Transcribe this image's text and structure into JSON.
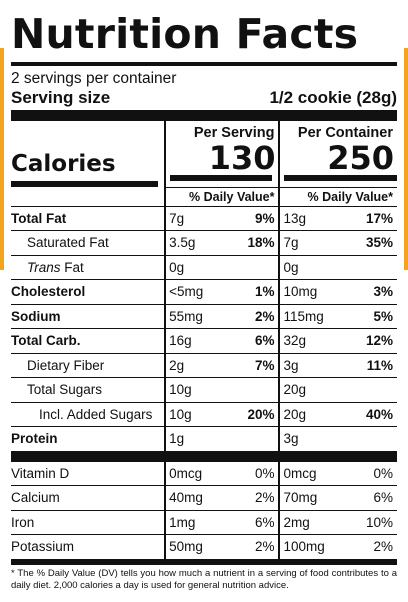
{
  "title": "Nutrition Facts",
  "servings_per_container": "2 servings per container",
  "serving_size_label": "Serving size",
  "serving_size_value": "1/2 cookie (28g)",
  "columns": {
    "per_serving": "Per Serving",
    "per_container": "Per Container",
    "dv_label": "% Daily Value*"
  },
  "calories": {
    "label": "Calories",
    "per_serving": "130",
    "per_container": "250"
  },
  "nutrients": [
    {
      "name": "Total Fat",
      "s_amt": "7g",
      "s_dv": "9%",
      "c_amt": "13g",
      "c_dv": "17%"
    },
    {
      "name": "Saturated Fat",
      "s_amt": "3.5g",
      "s_dv": "18%",
      "c_amt": "7g",
      "c_dv": "35%"
    },
    {
      "name_italic": "Trans",
      "name": " Fat",
      "s_amt": "0g",
      "s_dv": "",
      "c_amt": "0g",
      "c_dv": ""
    },
    {
      "name": "Cholesterol",
      "s_amt": "<5mg",
      "s_dv": "1%",
      "c_amt": "10mg",
      "c_dv": "3%"
    },
    {
      "name": "Sodium",
      "s_amt": "55mg",
      "s_dv": "2%",
      "c_amt": "115mg",
      "c_dv": "5%"
    },
    {
      "name": "Total Carb.",
      "s_amt": "16g",
      "s_dv": "6%",
      "c_amt": "32g",
      "c_dv": "12%"
    },
    {
      "name": "Dietary Fiber",
      "s_amt": "2g",
      "s_dv": "7%",
      "c_amt": "3g",
      "c_dv": "11%"
    },
    {
      "name": "Total Sugars",
      "s_amt": "10g",
      "s_dv": "",
      "c_amt": "20g",
      "c_dv": ""
    },
    {
      "name": "Incl. Added Sugars",
      "s_amt": "10g",
      "s_dv": "20%",
      "c_amt": "20g",
      "c_dv": "40%"
    },
    {
      "name": "Protein",
      "s_amt": "1g",
      "s_dv": "",
      "c_amt": "3g",
      "c_dv": ""
    }
  ],
  "vitamins": [
    {
      "name": "Vitamin D",
      "s_amt": "0mcg",
      "s_dv": "0%",
      "c_amt": "0mcg",
      "c_dv": "0%"
    },
    {
      "name": "Calcium",
      "s_amt": "40mg",
      "s_dv": "2%",
      "c_amt": "70mg",
      "c_dv": "6%"
    },
    {
      "name": "Iron",
      "s_amt": "1mg",
      "s_dv": "6%",
      "c_amt": "2mg",
      "c_dv": "10%"
    },
    {
      "name": "Potassium",
      "s_amt": "50mg",
      "s_dv": "2%",
      "c_amt": "100mg",
      "c_dv": "2%"
    }
  ],
  "footnote": "* The % Daily Value (DV) tells you how much a nutrient in a serving of food contributes to a daily diet. 2,000 calories a day is used for general nutrition advice.",
  "colors": {
    "accent": "#f2a51c",
    "ink": "#111111"
  }
}
